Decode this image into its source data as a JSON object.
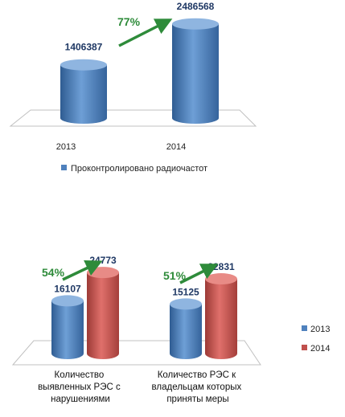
{
  "chart_data": [
    {
      "type": "bar",
      "categories": [
        "2013",
        "2014"
      ],
      "series": [
        {
          "name": "Проконтролировано радиочастот",
          "values": [
            1406387,
            2486568
          ]
        }
      ],
      "data_labels": [
        "1406387",
        "2486568"
      ],
      "annotations": [
        {
          "text": "77%",
          "from": "2013",
          "to": "2014"
        }
      ],
      "ylim": [
        0,
        2800000
      ],
      "grid": false,
      "legend": "bottom",
      "colors": {
        "series1": "#4f81bd"
      }
    },
    {
      "type": "bar",
      "categories": [
        "Количество выявленных РЭС с нарушениями",
        "Количество РЭС к владельцам которых приняты меры"
      ],
      "category_lines": [
        [
          "Количество",
          "выявленных РЭС с",
          "нарушениями"
        ],
        [
          "Количество РЭС к",
          "владельцам которых",
          "приняты меры"
        ]
      ],
      "series": [
        {
          "name": "2013",
          "values": [
            16107,
            15125
          ]
        },
        {
          "name": "2014",
          "values": [
            24773,
            22831
          ]
        }
      ],
      "data_labels": [
        [
          "16107",
          "15125"
        ],
        [
          "24773",
          "22831"
        ]
      ],
      "annotations": [
        {
          "text": "54%",
          "category": 0
        },
        {
          "text": "51%",
          "category": 1
        }
      ],
      "ylim": [
        0,
        28000
      ],
      "grid": false,
      "legend": "right",
      "colors": {
        "series1": "#4f81bd",
        "series2": "#c0504d"
      }
    }
  ]
}
